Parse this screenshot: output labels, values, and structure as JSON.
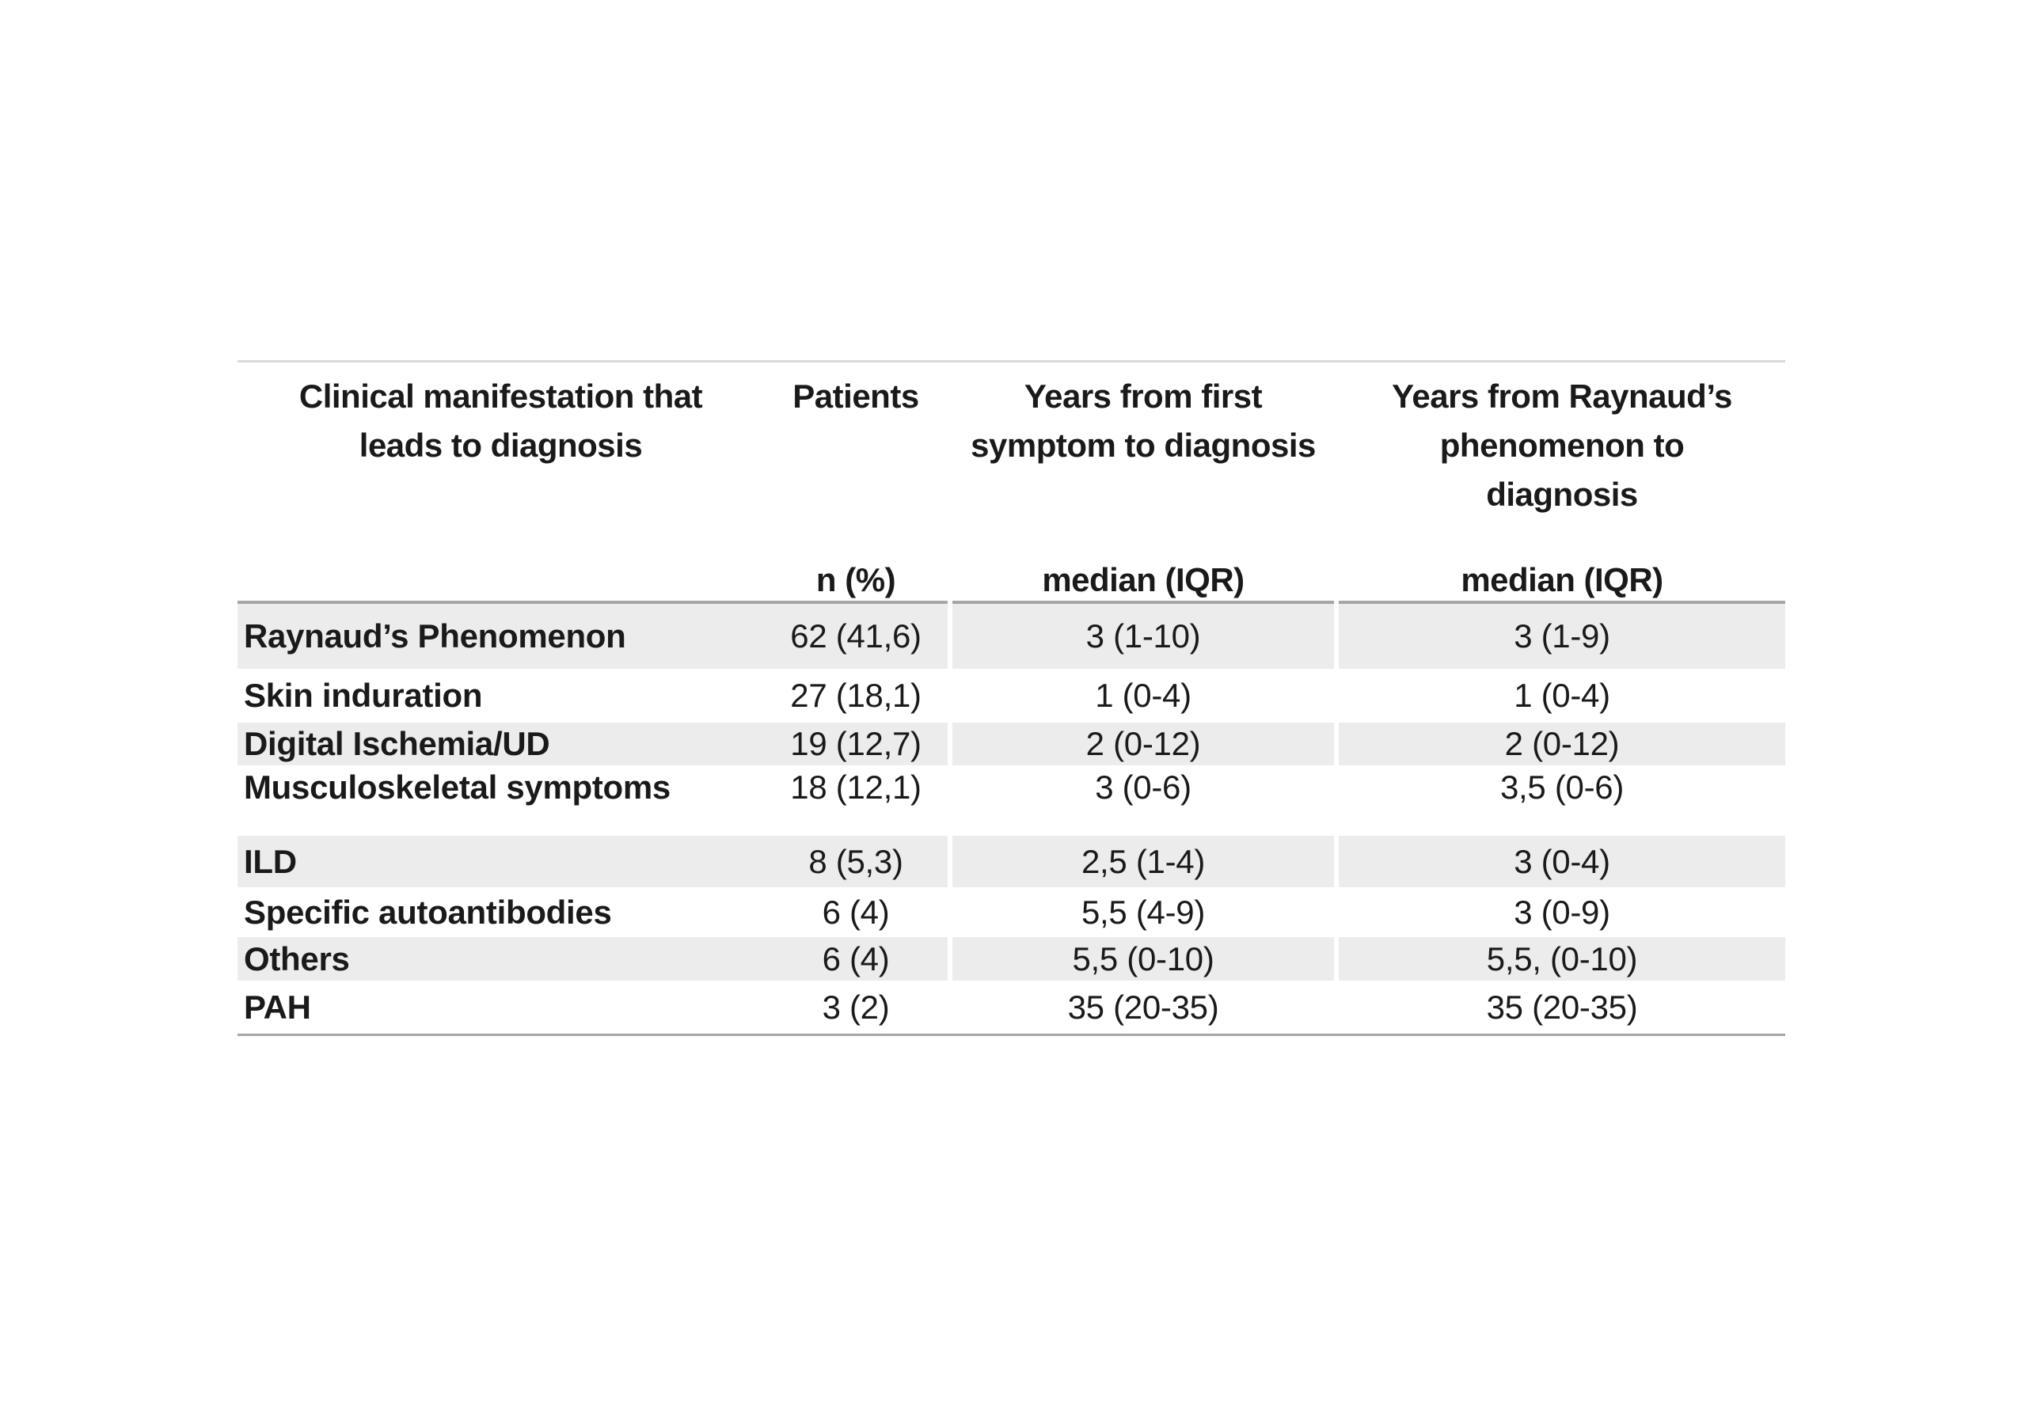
{
  "table": {
    "colors": {
      "row_shade": "#ececec",
      "top_border": "#d9d9d9",
      "header_border": "#a6a6a6",
      "bottom_border": "#a6a6a6",
      "text": "#1a1a1a"
    },
    "header": {
      "col1": {
        "title": "Clinical manifestation that leads to diagnosis",
        "sub": ""
      },
      "col2": {
        "title": "Patients",
        "sub": "n (%)"
      },
      "col3": {
        "title": "Years from first symptom to diagnosis",
        "sub": "median (IQR)"
      },
      "col4": {
        "title": "Years from Raynaud’s phenomenon to diagnosis",
        "sub": "median (IQR)"
      }
    },
    "rows": [
      {
        "label": "Raynaud’s Phenomenon",
        "patients_n_pct": "62 (41,6)",
        "years_first_symptom": "3 (1-10)",
        "years_raynaud": "3 (1-9)"
      },
      {
        "label": "Skin induration",
        "patients_n_pct": "27 (18,1)",
        "years_first_symptom": "1 (0-4)",
        "years_raynaud": "1 (0-4)"
      },
      {
        "label": "Digital Ischemia/UD",
        "patients_n_pct": "19 (12,7)",
        "years_first_symptom": "2 (0-12)",
        "years_raynaud": "2 (0-12)"
      },
      {
        "label": "Musculoskeletal symptoms",
        "patients_n_pct": "18 (12,1)",
        "years_first_symptom": "3 (0-6)",
        "years_raynaud": "3,5 (0-6)"
      },
      {
        "label": "ILD",
        "patients_n_pct": "8 (5,3)",
        "years_first_symptom": "2,5 (1-4)",
        "years_raynaud": "3 (0-4)"
      },
      {
        "label": "Specific autoantibodies",
        "patients_n_pct": "6 (4)",
        "years_first_symptom": "5,5 (4-9)",
        "years_raynaud": "3 (0-9)"
      },
      {
        "label": "Others",
        "patients_n_pct": "6 (4)",
        "years_first_symptom": "5,5 (0-10)",
        "years_raynaud": "5,5, (0-10)"
      },
      {
        "label": "PAH",
        "patients_n_pct": "3 (2)",
        "years_first_symptom": "35 (20-35)",
        "years_raynaud": "35 (20-35)"
      }
    ]
  },
  "chart_data": {
    "type": "table",
    "columns": [
      "Clinical manifestation that leads to diagnosis",
      "Patients n (%)",
      "Years from first symptom to diagnosis median (IQR)",
      "Years from Raynaud’s phenomenon to diagnosis median (IQR)"
    ],
    "rows": [
      [
        "Raynaud’s Phenomenon",
        "62 (41,6)",
        "3 (1-10)",
        "3 (1-9)"
      ],
      [
        "Skin induration",
        "27 (18,1)",
        "1 (0-4)",
        "1 (0-4)"
      ],
      [
        "Digital Ischemia/UD",
        "19 (12,7)",
        "2 (0-12)",
        "2 (0-12)"
      ],
      [
        "Musculoskeletal symptoms",
        "18 (12,1)",
        "3 (0-6)",
        "3,5 (0-6)"
      ],
      [
        "ILD",
        "8 (5,3)",
        "2,5 (1-4)",
        "3 (0-4)"
      ],
      [
        "Specific autoantibodies",
        "6 (4)",
        "5,5 (4-9)",
        "3 (0-9)"
      ],
      [
        "Others",
        "6 (4)",
        "5,5 (0-10)",
        "5,5, (0-10)"
      ],
      [
        "PAH",
        "3 (2)",
        "35 (20-35)",
        "35 (20-35)"
      ]
    ]
  }
}
